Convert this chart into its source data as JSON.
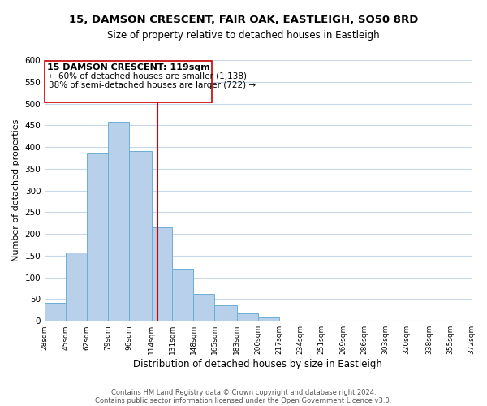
{
  "title": "15, DAMSON CRESCENT, FAIR OAK, EASTLEIGH, SO50 8RD",
  "subtitle": "Size of property relative to detached houses in Eastleigh",
  "xlabel": "Distribution of detached houses by size in Eastleigh",
  "ylabel": "Number of detached properties",
  "bin_labels": [
    "28sqm",
    "45sqm",
    "62sqm",
    "79sqm",
    "96sqm",
    "114sqm",
    "131sqm",
    "148sqm",
    "165sqm",
    "183sqm",
    "200sqm",
    "217sqm",
    "234sqm",
    "251sqm",
    "269sqm",
    "286sqm",
    "303sqm",
    "320sqm",
    "338sqm",
    "355sqm",
    "372sqm"
  ],
  "bin_edges": [
    28,
    45,
    62,
    79,
    96,
    114,
    131,
    148,
    165,
    183,
    200,
    217,
    234,
    251,
    269,
    286,
    303,
    320,
    338,
    355,
    372
  ],
  "bar_heights": [
    42,
    158,
    385,
    458,
    390,
    215,
    120,
    62,
    35,
    17,
    8,
    0,
    0,
    0,
    0,
    0,
    0,
    0,
    0,
    0
  ],
  "bar_color": "#b8d0ea",
  "bar_edgecolor": "#6aaed6",
  "property_line_x": 119,
  "property_line_color": "#cc0000",
  "ylim": [
    0,
    600
  ],
  "yticks": [
    0,
    50,
    100,
    150,
    200,
    250,
    300,
    350,
    400,
    450,
    500,
    550,
    600
  ],
  "annotation_title": "15 DAMSON CRESCENT: 119sqm",
  "annotation_line1": "← 60% of detached houses are smaller (1,138)",
  "annotation_line2": "38% of semi-detached houses are larger (722) →",
  "footer1": "Contains HM Land Registry data © Crown copyright and database right 2024.",
  "footer2": "Contains public sector information licensed under the Open Government Licence v3.0.",
  "background_color": "#ffffff",
  "grid_color": "#c8d8e8"
}
